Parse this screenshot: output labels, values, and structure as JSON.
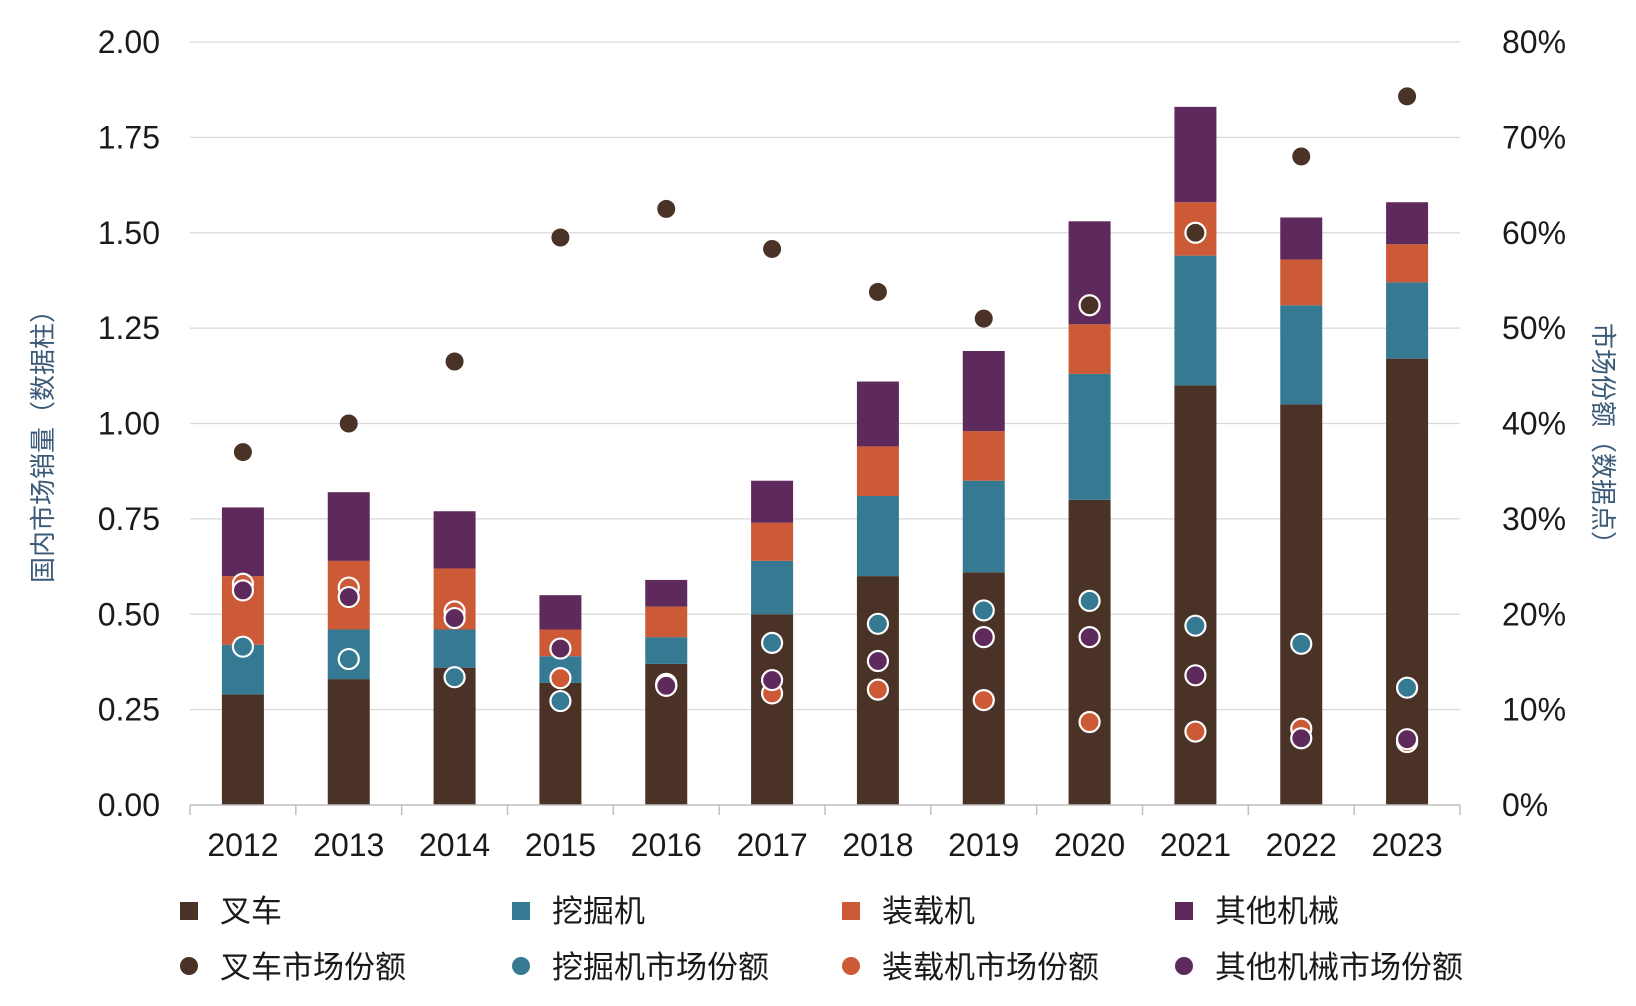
{
  "chart_data": {
    "type": "bar",
    "stacked": true,
    "categories": [
      "2012",
      "2013",
      "2014",
      "2015",
      "2016",
      "2017",
      "2018",
      "2019",
      "2020",
      "2021",
      "2022",
      "2023"
    ],
    "series": [
      {
        "name": "叉车",
        "color": "#4a3226",
        "values": [
          0.29,
          0.33,
          0.36,
          0.32,
          0.37,
          0.5,
          0.6,
          0.61,
          0.8,
          1.1,
          1.05,
          1.17
        ]
      },
      {
        "name": "挖掘机",
        "color": "#357a92",
        "values": [
          0.13,
          0.13,
          0.1,
          0.07,
          0.07,
          0.14,
          0.21,
          0.24,
          0.33,
          0.34,
          0.26,
          0.2
        ]
      },
      {
        "name": "装载机",
        "color": "#cc5a36",
        "values": [
          0.18,
          0.18,
          0.16,
          0.07,
          0.08,
          0.1,
          0.13,
          0.13,
          0.13,
          0.14,
          0.12,
          0.1
        ]
      },
      {
        "name": "其他机械",
        "color": "#5e2a5c",
        "values": [
          0.18,
          0.18,
          0.15,
          0.09,
          0.07,
          0.11,
          0.17,
          0.21,
          0.27,
          0.25,
          0.11,
          0.11
        ]
      }
    ],
    "share_series": [
      {
        "name": "叉车市场份额",
        "color": "#4a3226",
        "values": [
          0.37,
          0.4,
          0.465,
          0.595,
          0.625,
          0.583,
          0.538,
          0.51,
          0.524,
          0.6,
          0.68,
          0.743
        ]
      },
      {
        "name": "挖掘机市场份额",
        "color": "#357a92",
        "values": [
          0.166,
          0.153,
          0.134,
          0.109,
          0.125,
          0.17,
          0.19,
          0.204,
          0.214,
          0.188,
          0.169,
          0.123
        ]
      },
      {
        "name": "装载机市场份额",
        "color": "#cc5a36",
        "values": [
          0.232,
          0.228,
          0.203,
          0.133,
          0.127,
          0.117,
          0.121,
          0.11,
          0.087,
          0.077,
          0.08,
          0.066
        ]
      },
      {
        "name": "其他机械市场份额",
        "color": "#5e2a5c",
        "values": [
          0.225,
          0.218,
          0.196,
          0.164,
          0.125,
          0.131,
          0.151,
          0.176,
          0.176,
          0.136,
          0.07,
          0.069
        ]
      }
    ],
    "title": "",
    "ylabel": "国内市场销量（数据柱）",
    "y2label": "市场份额（数据点）",
    "ylim": [
      0,
      2.0
    ],
    "y2lim": [
      0,
      0.8
    ],
    "yticks": [
      "0.00",
      "0.25",
      "0.50",
      "0.75",
      "1.00",
      "1.25",
      "1.50",
      "1.75",
      "2.00"
    ],
    "y2ticks": [
      "0%",
      "10%",
      "20%",
      "30%",
      "40%",
      "50%",
      "60%",
      "70%",
      "80%"
    ],
    "grid": true,
    "legend_position": "bottom"
  }
}
